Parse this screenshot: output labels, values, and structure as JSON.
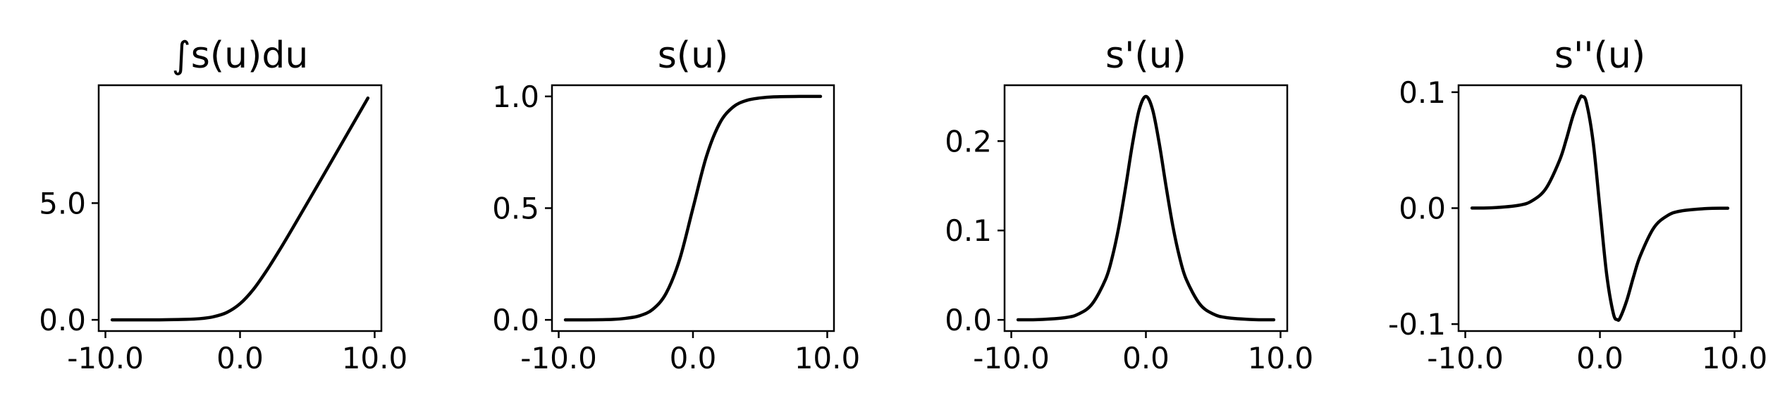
{
  "chart_data": [
    {
      "type": "line",
      "title": "∫s(u)du",
      "xlabel": "",
      "ylabel": "",
      "xlim": [
        -10.5,
        10.5
      ],
      "ylim": [
        -0.48,
        10.05
      ],
      "x_ticks": [
        -10,
        0,
        10
      ],
      "x_tick_labels": [
        "-10.0",
        "0.0",
        "10.0"
      ],
      "y_ticks": [
        0,
        5
      ],
      "y_tick_labels": [
        "0.0",
        "5.0"
      ],
      "grid": false,
      "series": [
        {
          "x": [
            -9.5,
            -8,
            -6,
            -4,
            -3,
            -2,
            -1,
            0,
            1,
            2,
            3,
            4,
            6,
            8,
            9.5
          ],
          "y": [
            0.0,
            0.0,
            0.0,
            0.02,
            0.05,
            0.13,
            0.31,
            0.69,
            1.31,
            2.13,
            3.05,
            4.02,
            6.0,
            8.0,
            9.5
          ]
        }
      ]
    },
    {
      "type": "line",
      "title": "s(u)",
      "xlabel": "",
      "ylabel": "",
      "xlim": [
        -10.5,
        10.5
      ],
      "ylim": [
        -0.05,
        1.05
      ],
      "x_ticks": [
        -10,
        0,
        10
      ],
      "x_tick_labels": [
        "-10.0",
        "0.0",
        "10.0"
      ],
      "y_ticks": [
        0,
        0.5,
        1.0
      ],
      "y_tick_labels": [
        "0.0",
        "0.5",
        "1.0"
      ],
      "grid": false,
      "series": [
        {
          "x": [
            -9.5,
            -8,
            -6,
            -5,
            -4,
            -3,
            -2,
            -1,
            0,
            1,
            2,
            3,
            4,
            5,
            6,
            8,
            9.5
          ],
          "y": [
            0.0,
            0.0,
            0.002,
            0.007,
            0.018,
            0.047,
            0.119,
            0.269,
            0.5,
            0.731,
            0.881,
            0.953,
            0.982,
            0.993,
            0.998,
            1.0,
            1.0
          ]
        }
      ]
    },
    {
      "type": "line",
      "title": "s'(u)",
      "xlabel": "",
      "ylabel": "",
      "xlim": [
        -10.5,
        10.5
      ],
      "ylim": [
        -0.0125,
        0.2625
      ],
      "x_ticks": [
        -10,
        0,
        10
      ],
      "x_tick_labels": [
        "-10.0",
        "0.0",
        "10.0"
      ],
      "y_ticks": [
        0,
        0.1,
        0.2
      ],
      "y_tick_labels": [
        "0.0",
        "0.1",
        "0.2"
      ],
      "grid": false,
      "series": [
        {
          "x": [
            -9.5,
            -8,
            -6,
            -5,
            -4,
            -3,
            -2.5,
            -2,
            -1.5,
            -1,
            -0.5,
            0,
            0.5,
            1,
            1.5,
            2,
            2.5,
            3,
            4,
            5,
            6,
            8,
            9.5
          ],
          "y": [
            0.0001,
            0.0003,
            0.0025,
            0.0066,
            0.0177,
            0.0452,
            0.0701,
            0.105,
            0.1491,
            0.1966,
            0.235,
            0.25,
            0.235,
            0.1966,
            0.1491,
            0.105,
            0.0701,
            0.0452,
            0.0177,
            0.0066,
            0.0025,
            0.0003,
            0.0001
          ]
        }
      ]
    },
    {
      "type": "line",
      "title": "s''(u)",
      "xlabel": "",
      "ylabel": "",
      "xlim": [
        -10.5,
        10.5
      ],
      "ylim": [
        -0.106,
        0.106
      ],
      "x_ticks": [
        -10,
        0,
        10
      ],
      "x_tick_labels": [
        "-10.0",
        "0.0",
        "10.0"
      ],
      "y_ticks": [
        -0.1,
        0,
        0.1
      ],
      "y_tick_labels": [
        "-0.1",
        "0.0",
        "0.1"
      ],
      "grid": false,
      "series": [
        {
          "x": [
            -9.5,
            -8,
            -6,
            -5,
            -4,
            -3,
            -2.5,
            -2,
            -1.5,
            -1.3,
            -1,
            -0.5,
            0,
            0.5,
            1,
            1.3,
            1.5,
            2,
            2.5,
            3,
            4,
            5,
            6,
            8,
            9.5
          ],
          "y": [
            0.0001,
            0.0003,
            0.0025,
            0.0066,
            0.0171,
            0.0411,
            0.0591,
            0.0795,
            0.0946,
            0.0962,
            0.0909,
            0.0569,
            0.0,
            -0.0569,
            -0.0909,
            -0.0962,
            -0.0946,
            -0.0795,
            -0.0591,
            -0.0411,
            -0.0171,
            -0.0066,
            -0.0025,
            -0.0003,
            -0.0001
          ]
        }
      ]
    }
  ]
}
